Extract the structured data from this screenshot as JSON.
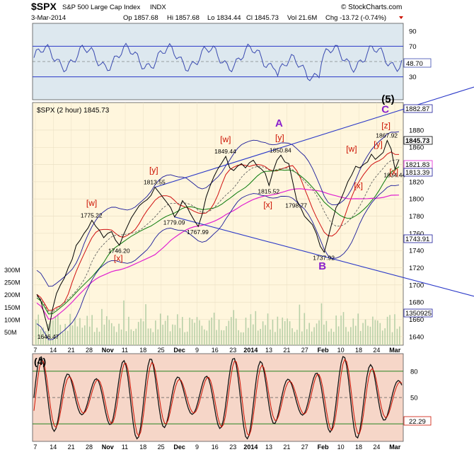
{
  "header": {
    "symbol": "$SPX",
    "name": "S&P 500 Large Cap Index",
    "exchange": "INDX",
    "date": "3-Mar-2014",
    "open": "Op 1857.68",
    "high": "Hi 1857.68",
    "low": "Lo 1834.44",
    "close": "Cl 1845.73",
    "volume": "Vol 21.6M",
    "change": "Chg -13.72 (-0.74%)",
    "source": "© StockCharts.com"
  },
  "colors": {
    "price_line": "#000000",
    "ma_short": "#d01010",
    "ma_mid": "#0a7a0a",
    "ma_long": "#e020d0",
    "bollinger": "#1a1a9a",
    "trendlines": "#2a38c8",
    "wave_label_red": "#cc1100",
    "wave_label_purple": "#8a20cc",
    "rsi_line": "#3a4ab0",
    "stoch_fast": "#111111",
    "stoch_slow": "#cc1100",
    "rsi_bg": "#dde8ef",
    "price_bg": "#fff6dd",
    "stoch_bg": "#f6d6c8",
    "volume_bar": "#b8d0a8"
  },
  "chart_data": [
    {
      "type": "line",
      "name": "RSI",
      "ylim": [
        0,
        100
      ],
      "ticks": [
        "90",
        "70",
        "50",
        "30"
      ],
      "last_value": "48.70",
      "levels": [
        70,
        30
      ]
    },
    {
      "type": "line",
      "name": "$SPX (2 hour) 1845.73",
      "legend": "$SPX (2 hour) 1845.73",
      "ylim": [
        1630,
        1912
      ],
      "y_ticks": [
        "1880",
        "1860",
        "1840",
        "1820",
        "1800",
        "1780",
        "1760",
        "1740",
        "1720",
        "1700",
        "1680",
        "1660",
        "1640"
      ],
      "x_ticks": [
        "7",
        "14",
        "21",
        "28",
        "Nov",
        "11",
        "18",
        "25",
        "Dec",
        "9",
        "16",
        "23",
        "2014",
        "13",
        "21",
        "27",
        "Feb",
        "10",
        "18",
        "24",
        "Mar"
      ],
      "price_series": [
        [
          0,
          1689
        ],
        [
          1,
          1682
        ],
        [
          2,
          1664
        ],
        [
          3,
          1646.47
        ],
        [
          4,
          1672
        ],
        [
          5,
          1690
        ],
        [
          6,
          1700
        ],
        [
          7,
          1708
        ],
        [
          8,
          1720
        ],
        [
          9,
          1730
        ],
        [
          10,
          1746
        ],
        [
          11,
          1752
        ],
        [
          12,
          1760
        ],
        [
          13,
          1766
        ],
        [
          14,
          1775.22
        ],
        [
          15,
          1768
        ],
        [
          16,
          1763
        ],
        [
          17,
          1755
        ],
        [
          18,
          1760
        ],
        [
          19,
          1762
        ],
        [
          20,
          1752
        ],
        [
          21,
          1746.2
        ],
        [
          22,
          1758
        ],
        [
          23,
          1768
        ],
        [
          24,
          1778
        ],
        [
          25,
          1785
        ],
        [
          26,
          1792
        ],
        [
          27,
          1796
        ],
        [
          28,
          1799
        ],
        [
          29,
          1804
        ],
        [
          30,
          1813.55
        ],
        [
          31,
          1808
        ],
        [
          32,
          1802
        ],
        [
          33,
          1796
        ],
        [
          34,
          1790
        ],
        [
          35,
          1779.09
        ],
        [
          36,
          1786
        ],
        [
          37,
          1798
        ],
        [
          38,
          1792
        ],
        [
          39,
          1783
        ],
        [
          40,
          1775
        ],
        [
          41,
          1767.99
        ],
        [
          42,
          1782
        ],
        [
          43,
          1802
        ],
        [
          44,
          1815
        ],
        [
          45,
          1826
        ],
        [
          46,
          1835
        ],
        [
          47,
          1842
        ],
        [
          48,
          1849.44
        ],
        [
          49,
          1836
        ],
        [
          50,
          1833
        ],
        [
          51,
          1838
        ],
        [
          52,
          1841
        ],
        [
          53,
          1836
        ],
        [
          54,
          1842
        ],
        [
          55,
          1845
        ],
        [
          56,
          1838
        ],
        [
          57,
          1835
        ],
        [
          58,
          1830
        ],
        [
          59,
          1815.52
        ],
        [
          60,
          1832
        ],
        [
          61,
          1845
        ],
        [
          62,
          1850.84
        ],
        [
          63,
          1843
        ],
        [
          64,
          1841
        ],
        [
          65,
          1820
        ],
        [
          66,
          1798.77
        ],
        [
          67,
          1790
        ],
        [
          68,
          1780
        ],
        [
          69,
          1775
        ],
        [
          70,
          1770
        ],
        [
          71,
          1760
        ],
        [
          72,
          1745
        ],
        [
          73,
          1737.92
        ],
        [
          74,
          1755
        ],
        [
          75,
          1773
        ],
        [
          76,
          1790
        ],
        [
          77,
          1797
        ],
        [
          78,
          1808
        ],
        [
          79,
          1820
        ],
        [
          80,
          1828
        ],
        [
          81,
          1838
        ],
        [
          82,
          1836
        ],
        [
          83,
          1840
        ],
        [
          84,
          1843
        ],
        [
          85,
          1852
        ],
        [
          86,
          1846
        ],
        [
          87,
          1850
        ],
        [
          88,
          1854
        ],
        [
          89,
          1867.92
        ],
        [
          90,
          1858
        ],
        [
          91,
          1834.44
        ],
        [
          92,
          1845.73
        ]
      ],
      "price_labels": [
        {
          "value": "1646.47",
          "i": 3
        },
        {
          "value": "1775.22",
          "i": 14
        },
        {
          "value": "1746.20",
          "i": 21
        },
        {
          "value": "1813.55",
          "i": 30
        },
        {
          "value": "1779.09",
          "i": 35
        },
        {
          "value": "1767.99",
          "i": 41
        },
        {
          "value": "1849.44",
          "i": 48
        },
        {
          "value": "1815.52",
          "i": 59
        },
        {
          "value": "1850.84",
          "i": 62
        },
        {
          "value": "1798.77",
          "i": 66
        },
        {
          "value": "1737.92",
          "i": 73
        },
        {
          "value": "1867.92",
          "i": 89
        },
        {
          "value": "1834.44",
          "i": 91
        }
      ],
      "wave_labels": [
        {
          "text": "[w]",
          "i": 14,
          "y": 1792,
          "color": "red"
        },
        {
          "text": "[x]",
          "i": 21,
          "y": 1728,
          "color": "red"
        },
        {
          "text": "[y]",
          "i": 30,
          "y": 1830,
          "color": "red"
        },
        {
          "text": "[w]",
          "i": 48,
          "y": 1866,
          "color": "red"
        },
        {
          "text": "[y]",
          "i": 62,
          "y": 1868,
          "color": "red"
        },
        {
          "text": "[x]",
          "i": 59,
          "y": 1790,
          "color": "red"
        },
        {
          "text": "A",
          "i": 62,
          "y": 1884,
          "color": "purple"
        },
        {
          "text": "B",
          "i": 73,
          "y": 1718,
          "color": "purple"
        },
        {
          "text": "[w]",
          "i": 80,
          "y": 1855,
          "color": "red"
        },
        {
          "text": "[y]",
          "i": 87,
          "y": 1860,
          "color": "red"
        },
        {
          "text": "[z]",
          "i": 89,
          "y": 1882,
          "color": "red"
        },
        {
          "text": "[x]",
          "i": 82,
          "y": 1812,
          "color": "red"
        },
        {
          "text": "[x]",
          "i": 91,
          "y": 1828,
          "color": "red"
        },
        {
          "text": "C",
          "i": 89,
          "y": 1900,
          "color": "purple"
        },
        {
          "text": "(5)",
          "i": 89,
          "y": 1912,
          "color": "black"
        }
      ],
      "right_tags": [
        "1882.87",
        "1845.73",
        "1821.83",
        "1813.39",
        "1743.91",
        "1350925"
      ],
      "volume_ticks": [
        "300M",
        "250M",
        "200M",
        "150M",
        "100M",
        "50M"
      ],
      "volume_last": "1350925"
    },
    {
      "type": "line",
      "name": "Stochastic",
      "ylim": [
        0,
        100
      ],
      "ticks": [
        "80",
        "50"
      ],
      "panel_label": "(4)",
      "last_value": "22.29",
      "levels": [
        80,
        50,
        20
      ]
    }
  ]
}
